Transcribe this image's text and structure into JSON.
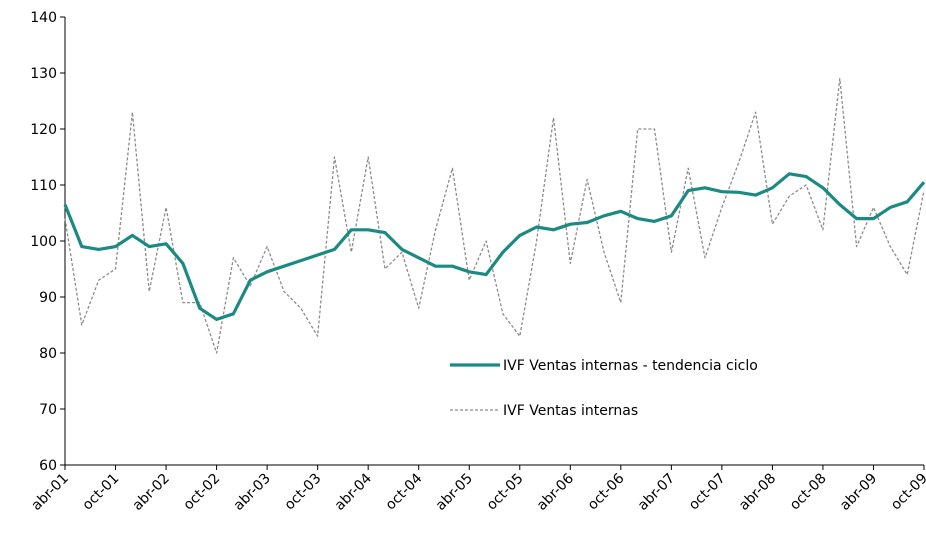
{
  "chart_data": {
    "type": "line",
    "categories": [
      "abr-01",
      null,
      null,
      "oct-01",
      null,
      null,
      "abr-02",
      null,
      null,
      "oct-02",
      null,
      null,
      "abr-03",
      null,
      null,
      "oct-03",
      null,
      null,
      "abr-04",
      null,
      null,
      "oct-04",
      null,
      null,
      "abr-05",
      null,
      null,
      "oct-05",
      null,
      null,
      "abr-06",
      null,
      null,
      "oct-06",
      null,
      null,
      "abr-07",
      null,
      null,
      "oct-07",
      null,
      null,
      "abr-08",
      null,
      null,
      "oct-08",
      null,
      null,
      "abr-09",
      null,
      null,
      "oct-09"
    ],
    "series": [
      {
        "name": "IVF Ventas internas - tendencia ciclo",
        "color": "#1a8a82",
        "dash": false,
        "values": [
          106.5,
          99,
          98.5,
          99,
          101,
          99,
          99.5,
          96,
          88,
          86,
          87,
          93,
          94.5,
          95.5,
          96.5,
          97.5,
          98.5,
          102,
          102,
          101.5,
          98.5,
          97,
          95.5,
          95.5,
          94.5,
          94,
          98,
          101,
          102.5,
          102,
          103,
          103.3,
          104.5,
          105.3,
          104,
          103.5,
          104.5,
          109,
          109.5,
          108.8,
          108.7,
          108.2,
          109.5,
          112,
          111.5,
          109.5,
          106.5,
          104,
          104,
          106,
          107,
          110.5
        ]
      },
      {
        "name": "IVF Ventas internas",
        "color": "#8c8c8c",
        "dash": true,
        "values": [
          104,
          85,
          93,
          95,
          123,
          91,
          106,
          89,
          89,
          80,
          97,
          92,
          99,
          91,
          88,
          83,
          115,
          98,
          115,
          95,
          98,
          88,
          102,
          113,
          93,
          100,
          87,
          83,
          100,
          122,
          96,
          111,
          98,
          89,
          120,
          120,
          98,
          113,
          97,
          106,
          114,
          123,
          103,
          108,
          110,
          102,
          129,
          99,
          106,
          99,
          94,
          109
        ]
      }
    ],
    "ylim": [
      60,
      140
    ],
    "yticks": [
      60,
      70,
      80,
      90,
      100,
      110,
      120,
      130,
      140
    ],
    "grid": false
  }
}
